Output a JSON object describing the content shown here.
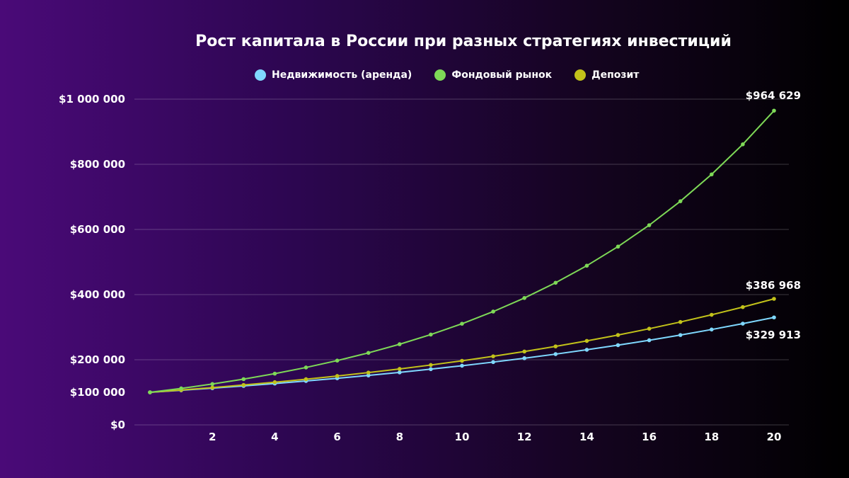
{
  "chart_data": {
    "type": "line",
    "title": "Рост капитала в России при разных стратегиях инвестиций",
    "xlabel": "",
    "ylabel": "",
    "x": [
      0,
      1,
      2,
      3,
      4,
      5,
      6,
      7,
      8,
      9,
      10,
      11,
      12,
      13,
      14,
      15,
      16,
      17,
      18,
      19,
      20
    ],
    "x_ticks": [
      "2",
      "4",
      "6",
      "8",
      "10",
      "12",
      "14",
      "16",
      "18",
      "20"
    ],
    "y_ticks": [
      {
        "v": 0,
        "label": "$0"
      },
      {
        "v": 100000,
        "label": "$100 000"
      },
      {
        "v": 200000,
        "label": "$200 000"
      },
      {
        "v": 400000,
        "label": "$400 000"
      },
      {
        "v": 600000,
        "label": "$600 000"
      },
      {
        "v": 800000,
        "label": "$800 000"
      },
      {
        "v": 1000000,
        "label": "$1 000 000"
      }
    ],
    "xlim": [
      0,
      20
    ],
    "ylim": [
      0,
      1000000
    ],
    "grid": "horizontal",
    "legend": "top",
    "series": [
      {
        "name": "Недвижимость (аренда)",
        "color": "#7fd8ff",
        "end_label": "$329 913",
        "values": [
          100000,
          106150,
          112678,
          119608,
          126964,
          134772,
          143061,
          151859,
          161198,
          171112,
          181635,
          192806,
          204664,
          217251,
          230612,
          244795,
          259850,
          275831,
          292795,
          310802,
          329913
        ]
      },
      {
        "name": "Фондовый рынок",
        "color": "#7ed957",
        "end_label": "$964 629",
        "values": [
          100000,
          112000,
          125440,
          140493,
          157352,
          176234,
          197382,
          221068,
          247596,
          277308,
          310585,
          347855,
          389598,
          436349,
          488711,
          547357,
          613039,
          686604,
          768997,
          861276,
          964629
        ]
      },
      {
        "name": "Депозит",
        "color": "#c2c21a",
        "end_label": "$386 968",
        "values": [
          100000,
          107000,
          114490,
          122504,
          131080,
          140255,
          150073,
          160578,
          171819,
          183846,
          196715,
          210485,
          225219,
          240985,
          257853,
          275903,
          295216,
          315882,
          337993,
          361653,
          386968
        ]
      }
    ]
  }
}
